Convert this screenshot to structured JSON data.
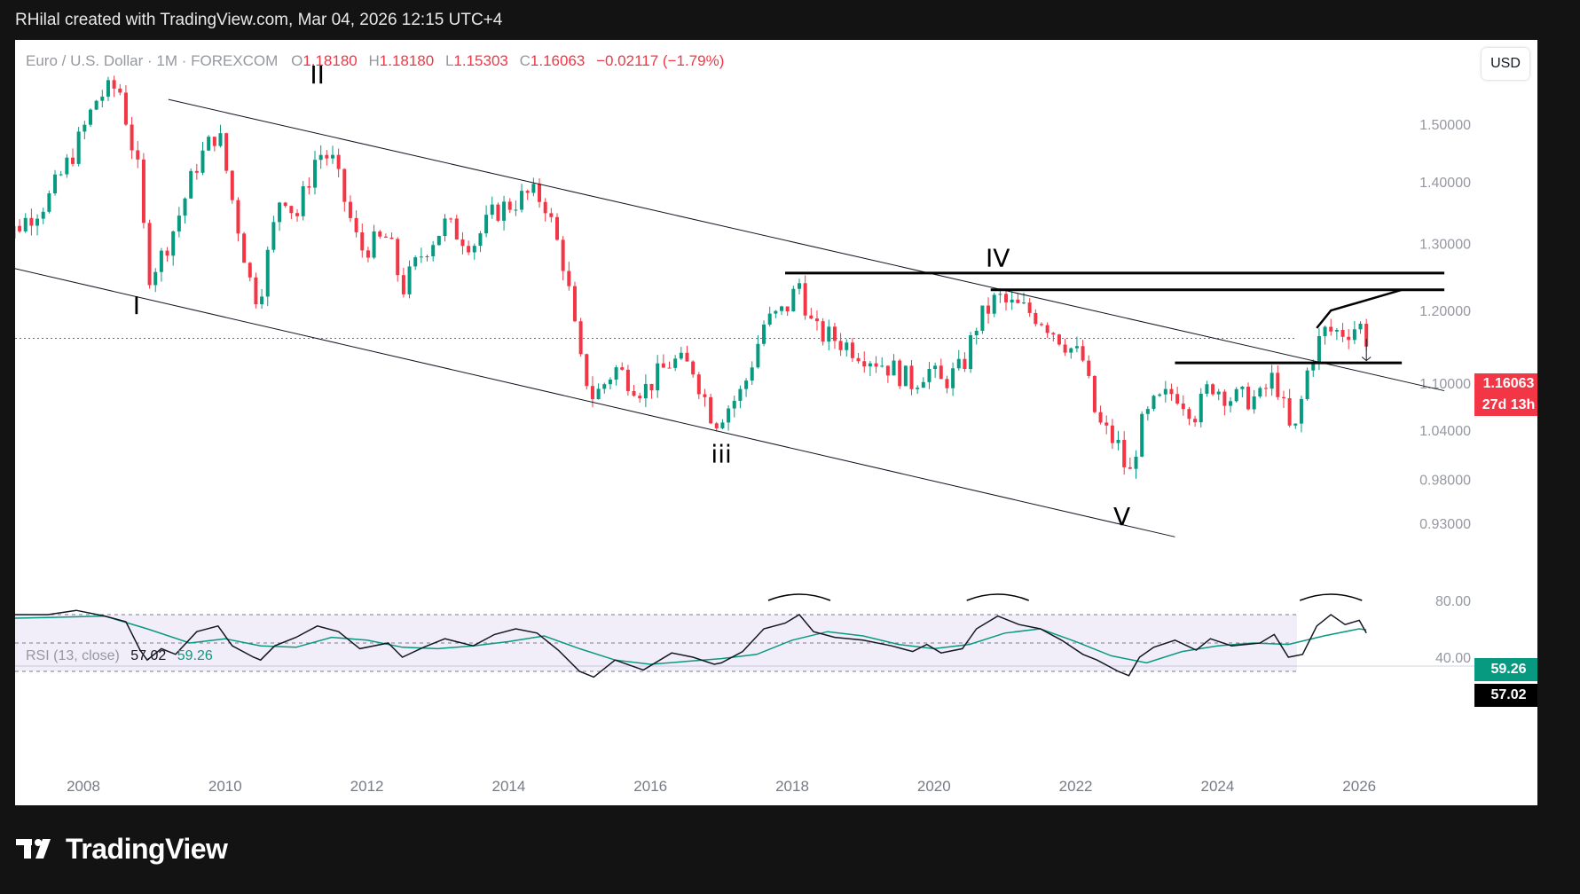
{
  "header": {
    "text": "RHilal created with TradingView.com, Mar 04, 2026 12:15 UTC+4"
  },
  "legend": {
    "symbol": "Euro / U.S. Dollar · 1M · FOREXCOM",
    "o_label": "O",
    "o": "1.18180",
    "h_label": "H",
    "h": "1.18180",
    "l_label": "L",
    "l": "1.15303",
    "c_label": "C",
    "c": "1.16063",
    "change": "−0.02117 (−1.79%)"
  },
  "currency_button": "USD",
  "price_tag": {
    "price": "1.16063",
    "countdown": "27d 13h"
  },
  "rsi": {
    "label": "RSI (13, close)",
    "value": "57.02",
    "ma": "59.26"
  },
  "wave_labels": [
    "I",
    "II",
    "iii",
    "IV",
    "V"
  ],
  "footer": {
    "brand": "TradingView"
  },
  "colors": {
    "up": "#089981",
    "down": "#f23645",
    "rsi_line": "#131722",
    "rsi_ma": "#089981",
    "rsi_band": "#7e57c2"
  },
  "chart_data": [
    {
      "type": "candlestick",
      "title": "Euro / U.S. Dollar · 1M · FOREXCOM",
      "x_ticks": [
        "2008",
        "2010",
        "2012",
        "2014",
        "2016",
        "2018",
        "2020",
        "2022",
        "2024",
        "2026"
      ],
      "y_ticks": [
        "1.50000",
        "1.40000",
        "1.30000",
        "1.20000",
        "1.10000",
        "1.04000",
        "0.98000",
        "0.93000"
      ],
      "y_scale": "log",
      "ylim": [
        0.9,
        1.62
      ],
      "price_path_closes": [
        [
          2006.6,
          1.27
        ],
        [
          2007.0,
          1.32
        ],
        [
          2007.5,
          1.37
        ],
        [
          2007.9,
          1.46
        ],
        [
          2008.2,
          1.55
        ],
        [
          2008.5,
          1.57
        ],
        [
          2008.8,
          1.4
        ],
        [
          2008.9,
          1.25
        ],
        [
          2009.1,
          1.28
        ],
        [
          2009.3,
          1.33
        ],
        [
          2009.6,
          1.43
        ],
        [
          2009.9,
          1.49
        ],
        [
          2010.1,
          1.37
        ],
        [
          2010.4,
          1.22
        ],
        [
          2010.5,
          1.23
        ],
        [
          2010.8,
          1.39
        ],
        [
          2011.0,
          1.34
        ],
        [
          2011.3,
          1.45
        ],
        [
          2011.5,
          1.44
        ],
        [
          2011.9,
          1.29
        ],
        [
          2012.3,
          1.31
        ],
        [
          2012.5,
          1.23
        ],
        [
          2012.8,
          1.29
        ],
        [
          2013.1,
          1.33
        ],
        [
          2013.5,
          1.3
        ],
        [
          2013.8,
          1.35
        ],
        [
          2014.3,
          1.38
        ],
        [
          2014.5,
          1.37
        ],
        [
          2014.8,
          1.26
        ],
        [
          2015.0,
          1.13
        ],
        [
          2015.2,
          1.08
        ],
        [
          2015.5,
          1.12
        ],
        [
          2015.9,
          1.09
        ],
        [
          2016.3,
          1.13
        ],
        [
          2016.6,
          1.12
        ],
        [
          2016.9,
          1.05
        ],
        [
          2017.0,
          1.06
        ],
        [
          2017.3,
          1.09
        ],
        [
          2017.6,
          1.18
        ],
        [
          2017.9,
          1.2
        ],
        [
          2018.1,
          1.24
        ],
        [
          2018.3,
          1.17
        ],
        [
          2018.6,
          1.16
        ],
        [
          2019.0,
          1.14
        ],
        [
          2019.4,
          1.12
        ],
        [
          2019.7,
          1.1
        ],
        [
          2019.9,
          1.12
        ],
        [
          2020.1,
          1.1
        ],
        [
          2020.4,
          1.12
        ],
        [
          2020.6,
          1.18
        ],
        [
          2020.9,
          1.22
        ],
        [
          2021.0,
          1.21
        ],
        [
          2021.3,
          1.2
        ],
        [
          2021.5,
          1.19
        ],
        [
          2021.8,
          1.16
        ],
        [
          2022.1,
          1.13
        ],
        [
          2022.3,
          1.05
        ],
        [
          2022.6,
          1.02
        ],
        [
          2022.75,
          0.98
        ],
        [
          2022.9,
          1.04
        ],
        [
          2023.1,
          1.07
        ],
        [
          2023.4,
          1.09
        ],
        [
          2023.7,
          1.06
        ],
        [
          2023.9,
          1.1
        ],
        [
          2024.2,
          1.08
        ],
        [
          2024.6,
          1.08
        ],
        [
          2024.8,
          1.11
        ],
        [
          2024.9,
          1.08
        ],
        [
          2025.0,
          1.04
        ],
        [
          2025.1,
          1.04
        ],
        [
          2025.3,
          1.13
        ],
        [
          2025.5,
          1.17
        ],
        [
          2025.8,
          1.17
        ],
        [
          2026.0,
          1.18
        ],
        [
          2026.1,
          1.16063
        ]
      ],
      "annotations": [
        {
          "text": "I",
          "x": 2008.75,
          "y": 1.195
        },
        {
          "text": "II",
          "x": 2011.3,
          "y": 1.575
        },
        {
          "text": "iii",
          "x": 2017.0,
          "y": 1.0
        },
        {
          "text": "IV",
          "x": 2020.9,
          "y": 1.265
        },
        {
          "text": "V",
          "x": 2022.65,
          "y": 0.928
        }
      ],
      "trendlines": [
        {
          "from": [
            2006.7,
            1.27
          ],
          "to": [
            2023.4,
            0.915
          ]
        },
        {
          "from": [
            2009.2,
            1.545
          ],
          "to": [
            2027.2,
            1.09
          ]
        }
      ],
      "horizontal_lines": [
        {
          "y": 1.255,
          "x_from": 2017.9,
          "x_to": 2027.2
        },
        {
          "y": 1.23,
          "x_from": 2020.8,
          "x_to": 2027.2
        },
        {
          "y": 1.127,
          "x_from": 2023.4,
          "x_to": 2026.6
        }
      ],
      "current_price": 1.16063
    },
    {
      "type": "line",
      "title": "RSI (13, close)",
      "y_ticks": [
        "80.00",
        "40.00"
      ],
      "ylim": [
        20,
        90
      ],
      "guides": [
        70,
        50,
        30
      ],
      "series": [
        {
          "name": "RSI (13, close)",
          "points": [
            [
              2006.6,
              66
            ],
            [
              2007.0,
              70
            ],
            [
              2007.5,
              70
            ],
            [
              2007.9,
              73
            ],
            [
              2008.3,
              69
            ],
            [
              2008.6,
              65
            ],
            [
              2008.8,
              45
            ],
            [
              2008.9,
              38
            ],
            [
              2009.1,
              46
            ],
            [
              2009.3,
              42
            ],
            [
              2009.6,
              58
            ],
            [
              2009.9,
              62
            ],
            [
              2010.1,
              48
            ],
            [
              2010.4,
              40
            ],
            [
              2010.5,
              38
            ],
            [
              2010.7,
              48
            ],
            [
              2011.0,
              54
            ],
            [
              2011.3,
              62
            ],
            [
              2011.6,
              58
            ],
            [
              2011.9,
              46
            ],
            [
              2012.3,
              50
            ],
            [
              2012.5,
              40
            ],
            [
              2012.8,
              47
            ],
            [
              2013.1,
              53
            ],
            [
              2013.5,
              48
            ],
            [
              2013.8,
              56
            ],
            [
              2014.1,
              60
            ],
            [
              2014.4,
              57
            ],
            [
              2014.7,
              45
            ],
            [
              2015.0,
              30
            ],
            [
              2015.2,
              26
            ],
            [
              2015.5,
              38
            ],
            [
              2015.9,
              31
            ],
            [
              2016.3,
              43
            ],
            [
              2016.6,
              40
            ],
            [
              2016.9,
              35
            ],
            [
              2017.0,
              36
            ],
            [
              2017.3,
              44
            ],
            [
              2017.6,
              60
            ],
            [
              2017.9,
              64
            ],
            [
              2018.1,
              70
            ],
            [
              2018.3,
              58
            ],
            [
              2018.6,
              54
            ],
            [
              2019.0,
              52
            ],
            [
              2019.4,
              48
            ],
            [
              2019.7,
              44
            ],
            [
              2019.9,
              49
            ],
            [
              2020.1,
              43
            ],
            [
              2020.4,
              46
            ],
            [
              2020.6,
              60
            ],
            [
              2020.9,
              69
            ],
            [
              2021.2,
              63
            ],
            [
              2021.5,
              60
            ],
            [
              2021.8,
              52
            ],
            [
              2022.1,
              42
            ],
            [
              2022.3,
              38
            ],
            [
              2022.6,
              30
            ],
            [
              2022.75,
              27
            ],
            [
              2022.9,
              40
            ],
            [
              2023.1,
              47
            ],
            [
              2023.4,
              52
            ],
            [
              2023.7,
              45
            ],
            [
              2023.9,
              53
            ],
            [
              2024.2,
              48
            ],
            [
              2024.6,
              50
            ],
            [
              2024.8,
              56
            ],
            [
              2024.9,
              48
            ],
            [
              2025.0,
              40
            ],
            [
              2025.2,
              42
            ],
            [
              2025.4,
              62
            ],
            [
              2025.6,
              70
            ],
            [
              2025.8,
              63
            ],
            [
              2026.0,
              66
            ],
            [
              2026.1,
              57.02
            ]
          ]
        },
        {
          "name": "MA",
          "points": [
            [
              2006.6,
              67
            ],
            [
              2007.5,
              68
            ],
            [
              2008.3,
              69
            ],
            [
              2008.9,
              60
            ],
            [
              2009.5,
              50
            ],
            [
              2010.0,
              53
            ],
            [
              2010.5,
              48
            ],
            [
              2011.0,
              47
            ],
            [
              2011.5,
              54
            ],
            [
              2012.0,
              52
            ],
            [
              2012.5,
              47
            ],
            [
              2013.0,
              46
            ],
            [
              2013.5,
              48
            ],
            [
              2014.0,
              51
            ],
            [
              2014.5,
              55
            ],
            [
              2015.0,
              46
            ],
            [
              2015.5,
              38
            ],
            [
              2016.0,
              35
            ],
            [
              2016.5,
              37
            ],
            [
              2017.0,
              39
            ],
            [
              2017.5,
              42
            ],
            [
              2018.0,
              52
            ],
            [
              2018.5,
              58
            ],
            [
              2019.0,
              55
            ],
            [
              2019.5,
              49
            ],
            [
              2020.0,
              46
            ],
            [
              2020.5,
              49
            ],
            [
              2021.0,
              57
            ],
            [
              2021.5,
              60
            ],
            [
              2022.0,
              51
            ],
            [
              2022.5,
              41
            ],
            [
              2023.0,
              36
            ],
            [
              2023.5,
              44
            ],
            [
              2024.0,
              48
            ],
            [
              2024.5,
              50
            ],
            [
              2025.0,
              49
            ],
            [
              2025.5,
              55
            ],
            [
              2026.0,
              60
            ],
            [
              2026.1,
              59.26
            ]
          ]
        }
      ]
    }
  ]
}
